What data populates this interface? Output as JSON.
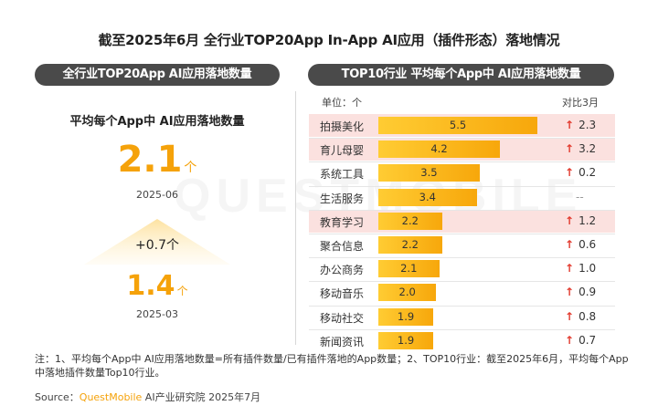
{
  "title": "截至2025年6月 全行业TOP20App In-App AI应用（插件形态）落地情况",
  "left_panel": {
    "header": "全行业TOP20App AI应用落地数量",
    "metric_label": "平均每个App中 AI应用落地数量",
    "current": {
      "value": "2.1",
      "unit": "个",
      "date": "2025-06"
    },
    "growth": "+0.7个",
    "previous": {
      "value": "1.4",
      "unit": "个",
      "date": "2025-03"
    }
  },
  "right_panel": {
    "header": "TOP10行业 平均每个App中 AI应用落地数量",
    "unit_label": "单位：个",
    "compare_label": "对比3月"
  },
  "chart_data": {
    "type": "bar",
    "categories": [
      "拍摄美化",
      "育儿母婴",
      "系统工具",
      "生活服务",
      "教育学习",
      "聚合信息",
      "办公商务",
      "移动音乐",
      "移动社交",
      "新闻资讯"
    ],
    "values": [
      5.5,
      4.2,
      3.5,
      3.4,
      2.2,
      2.2,
      2.1,
      2.0,
      1.9,
      1.9
    ],
    "value_labels": [
      "5.5",
      "4.2",
      "3.5",
      "3.4",
      "2.2",
      "2.2",
      "2.1",
      "2.0",
      "1.9",
      "1.9"
    ],
    "change_vs_march": [
      "2.3",
      "3.2",
      "0.2",
      "--",
      "1.2",
      "0.6",
      "1.0",
      "0.9",
      "0.8",
      "0.7"
    ],
    "highlighted": [
      true,
      true,
      false,
      false,
      true,
      false,
      false,
      false,
      false,
      false
    ],
    "xlim": [
      0,
      6
    ]
  },
  "note": "注：1、平均每个App中 AI应用落地数量=所有插件数量/已有插件落地的App数量；2、TOP10行业：截至2025年6月，平均每个App中落地插件数量Top10行业。",
  "source": {
    "prefix": "Source：",
    "brand": "QuestMobile",
    "suffix": " AI产业研究院 2025年7月"
  },
  "watermark": "QUESTMOBILE",
  "colors": {
    "accent": "#f5a20a",
    "up_arrow": "#e23a2e",
    "highlight_row": "#fbe1df",
    "pill": "#4a4a4a"
  }
}
